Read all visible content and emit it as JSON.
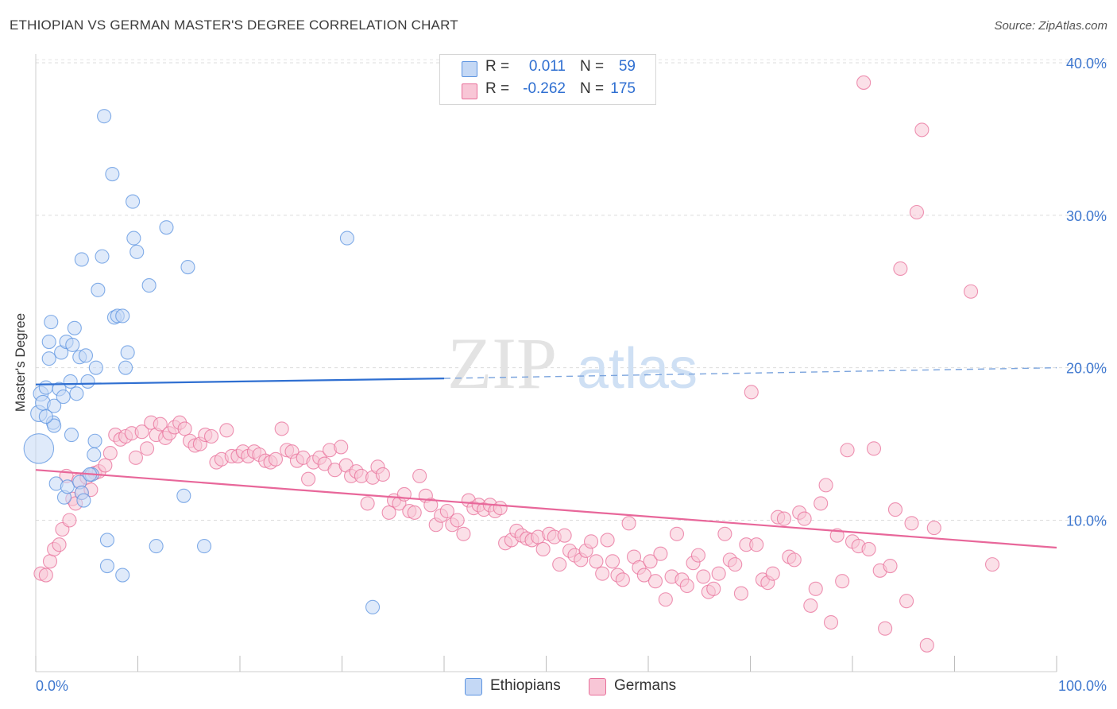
{
  "title": "ETHIOPIAN VS GERMAN MASTER'S DEGREE CORRELATION CHART",
  "source": "Source: ZipAtlas.com",
  "watermark": {
    "zip": "ZIP",
    "atlas": "atlas"
  },
  "legend": {
    "rows": [
      {
        "r_label": "R =",
        "r_value": "0.011",
        "n_label": "N =",
        "n_value": "59",
        "color": "#5b93e0",
        "fill": "#c4d8f5"
      },
      {
        "r_label": "R =",
        "r_value": "-0.262",
        "n_label": "N =",
        "n_value": "175",
        "color": "#e86f9a",
        "fill": "#f8c6d6"
      }
    ]
  },
  "bottom_legend": [
    {
      "label": "Ethiopians",
      "color": "#5b93e0",
      "fill": "#c4d8f5"
    },
    {
      "label": "Germans",
      "color": "#e86f9a",
      "fill": "#f8c6d6"
    }
  ],
  "chart_data": {
    "type": "scatter",
    "title": "ETHIOPIAN VS GERMAN MASTER'S DEGREE CORRELATION CHART",
    "xlabel": "",
    "ylabel": "Master's Degree",
    "xlim": [
      0,
      100
    ],
    "ylim": [
      0,
      42
    ],
    "x_tick_labels": [
      "0.0%",
      "100.0%"
    ],
    "y_ticks": [
      10,
      20,
      30,
      40
    ],
    "y_tick_labels": [
      "10.0%",
      "20.0%",
      "30.0%",
      "40.0%"
    ],
    "grid": true,
    "legend_position": "top-center",
    "series": [
      {
        "name": "Ethiopians",
        "color": "#5b93e0",
        "fill": "#c4d8f5",
        "trend": {
          "x": [
            0,
            40,
            100
          ],
          "y": [
            18.9,
            19.3,
            20.0
          ],
          "solid_until": 40
        },
        "points": [
          [
            0.3,
            14.7,
            22
          ],
          [
            0.3,
            17.0,
            12
          ],
          [
            0.5,
            18.3,
            11
          ],
          [
            0.7,
            17.7,
            11
          ],
          [
            1.0,
            18.7,
            10
          ],
          [
            1.3,
            21.7,
            10
          ],
          [
            1.3,
            20.6,
            10
          ],
          [
            1.5,
            23.0,
            10
          ],
          [
            1.7,
            16.4,
            10
          ],
          [
            1.8,
            17.5,
            10
          ],
          [
            1.8,
            16.2,
            10
          ],
          [
            2.0,
            12.4,
            10
          ],
          [
            2.3,
            18.6,
            10
          ],
          [
            2.5,
            21.0,
            10
          ],
          [
            2.7,
            18.1,
            10
          ],
          [
            2.8,
            11.5,
            10
          ],
          [
            3.0,
            21.7,
            10
          ],
          [
            3.1,
            12.2,
            10
          ],
          [
            3.4,
            19.1,
            10
          ],
          [
            3.5,
            15.6,
            10
          ],
          [
            3.6,
            21.5,
            10
          ],
          [
            3.8,
            22.6,
            10
          ],
          [
            4.0,
            18.3,
            10
          ],
          [
            4.3,
            20.7,
            10
          ],
          [
            4.3,
            12.5,
            10
          ],
          [
            4.5,
            11.8,
            10
          ],
          [
            4.5,
            27.1,
            10
          ],
          [
            4.7,
            11.3,
            10
          ],
          [
            4.9,
            20.8,
            10
          ],
          [
            5.1,
            19.1,
            10
          ],
          [
            5.5,
            13.0,
            10
          ],
          [
            5.7,
            14.3,
            10
          ],
          [
            5.8,
            15.2,
            10
          ],
          [
            5.9,
            20.0,
            10
          ],
          [
            6.1,
            25.1,
            10
          ],
          [
            6.5,
            27.3,
            10
          ],
          [
            6.7,
            36.5,
            10
          ],
          [
            7.0,
            8.7,
            10
          ],
          [
            7.0,
            7.0,
            10
          ],
          [
            7.5,
            32.7,
            10
          ],
          [
            7.7,
            23.3,
            10
          ],
          [
            8.0,
            23.4,
            10
          ],
          [
            8.5,
            23.4,
            10
          ],
          [
            8.5,
            6.4,
            10
          ],
          [
            8.8,
            20.0,
            10
          ],
          [
            9.0,
            21.0,
            10
          ],
          [
            9.5,
            30.9,
            10
          ],
          [
            9.6,
            28.5,
            10
          ],
          [
            9.9,
            27.6,
            10
          ],
          [
            11.1,
            25.4,
            10
          ],
          [
            11.8,
            8.3,
            10
          ],
          [
            12.8,
            29.2,
            10
          ],
          [
            14.5,
            11.6,
            10
          ],
          [
            14.9,
            26.6,
            10
          ],
          [
            16.5,
            8.3,
            10
          ],
          [
            30.5,
            28.5,
            10
          ],
          [
            33.0,
            4.3,
            10
          ],
          [
            5.3,
            13.0,
            10
          ],
          [
            1.0,
            16.8,
            10
          ]
        ]
      },
      {
        "name": "Germans",
        "color": "#e86f9a",
        "fill": "#f8c6d6",
        "trend": {
          "x": [
            0,
            100
          ],
          "y": [
            13.3,
            8.2
          ]
        },
        "points": [
          [
            0.5,
            6.5,
            10
          ],
          [
            1.0,
            6.4,
            10
          ],
          [
            1.4,
            7.3,
            10
          ],
          [
            1.8,
            8.1,
            10
          ],
          [
            2.3,
            8.4,
            10
          ],
          [
            2.6,
            9.4,
            10
          ],
          [
            3.0,
            12.9,
            10
          ],
          [
            3.3,
            10.0,
            10
          ],
          [
            3.6,
            11.4,
            10
          ],
          [
            3.9,
            11.1,
            10
          ],
          [
            4.2,
            12.6,
            10
          ],
          [
            4.5,
            11.8,
            10
          ],
          [
            5.0,
            12.8,
            10
          ],
          [
            5.4,
            12.0,
            10
          ],
          [
            5.8,
            13.1,
            10
          ],
          [
            6.2,
            13.2,
            10
          ],
          [
            6.8,
            13.6,
            10
          ],
          [
            7.3,
            14.4,
            10
          ],
          [
            7.8,
            15.6,
            10
          ],
          [
            8.3,
            15.3,
            10
          ],
          [
            8.8,
            15.5,
            10
          ],
          [
            9.4,
            15.7,
            10
          ],
          [
            9.8,
            14.1,
            10
          ],
          [
            10.4,
            15.8,
            10
          ],
          [
            10.9,
            14.7,
            10
          ],
          [
            11.3,
            16.4,
            10
          ],
          [
            11.8,
            15.6,
            10
          ],
          [
            12.2,
            16.3,
            10
          ],
          [
            12.7,
            15.4,
            10
          ],
          [
            13.1,
            15.7,
            10
          ],
          [
            13.6,
            16.1,
            10
          ],
          [
            14.1,
            16.4,
            10
          ],
          [
            14.6,
            16.0,
            10
          ],
          [
            15.1,
            15.2,
            10
          ],
          [
            15.6,
            14.9,
            10
          ],
          [
            16.1,
            15.0,
            10
          ],
          [
            16.6,
            15.6,
            10
          ],
          [
            17.2,
            15.5,
            10
          ],
          [
            17.7,
            13.8,
            10
          ],
          [
            18.2,
            14.0,
            10
          ],
          [
            18.7,
            15.9,
            10
          ],
          [
            19.2,
            14.2,
            10
          ],
          [
            19.8,
            14.2,
            10
          ],
          [
            20.3,
            14.5,
            10
          ],
          [
            20.8,
            14.2,
            10
          ],
          [
            21.4,
            14.5,
            10
          ],
          [
            21.9,
            14.3,
            10
          ],
          [
            22.5,
            13.9,
            10
          ],
          [
            23.0,
            13.8,
            10
          ],
          [
            23.5,
            14.0,
            10
          ],
          [
            24.1,
            16.0,
            10
          ],
          [
            24.6,
            14.6,
            10
          ],
          [
            25.1,
            14.5,
            10
          ],
          [
            25.6,
            13.9,
            10
          ],
          [
            26.2,
            14.1,
            10
          ],
          [
            26.7,
            12.7,
            10
          ],
          [
            27.2,
            13.8,
            10
          ],
          [
            27.8,
            14.1,
            10
          ],
          [
            28.3,
            13.7,
            10
          ],
          [
            28.8,
            14.6,
            10
          ],
          [
            29.3,
            13.3,
            10
          ],
          [
            29.9,
            14.8,
            10
          ],
          [
            30.4,
            13.6,
            10
          ],
          [
            30.9,
            12.9,
            10
          ],
          [
            31.4,
            13.2,
            10
          ],
          [
            31.9,
            12.9,
            10
          ],
          [
            32.5,
            11.1,
            10
          ],
          [
            33.0,
            12.8,
            10
          ],
          [
            33.5,
            13.5,
            10
          ],
          [
            34.0,
            13.0,
            10
          ],
          [
            34.6,
            10.5,
            10
          ],
          [
            35.1,
            11.3,
            10
          ],
          [
            35.6,
            11.1,
            10
          ],
          [
            36.1,
            11.7,
            10
          ],
          [
            36.6,
            10.6,
            10
          ],
          [
            37.1,
            10.5,
            10
          ],
          [
            37.6,
            12.9,
            10
          ],
          [
            38.2,
            11.6,
            10
          ],
          [
            38.7,
            11.0,
            10
          ],
          [
            39.2,
            9.7,
            10
          ],
          [
            39.7,
            10.3,
            10
          ],
          [
            40.3,
            10.6,
            10
          ],
          [
            40.8,
            9.7,
            10
          ],
          [
            41.3,
            10.0,
            10
          ],
          [
            41.9,
            9.1,
            10
          ],
          [
            42.4,
            11.3,
            10
          ],
          [
            42.9,
            10.8,
            10
          ],
          [
            43.4,
            11.0,
            10
          ],
          [
            43.9,
            10.7,
            10
          ],
          [
            44.5,
            11.0,
            10
          ],
          [
            45.0,
            10.6,
            10
          ],
          [
            45.5,
            10.8,
            10
          ],
          [
            46.0,
            8.5,
            10
          ],
          [
            46.6,
            8.7,
            10
          ],
          [
            47.1,
            9.3,
            10
          ],
          [
            47.6,
            9.0,
            10
          ],
          [
            48.1,
            8.8,
            10
          ],
          [
            48.6,
            8.7,
            10
          ],
          [
            49.2,
            8.9,
            10
          ],
          [
            49.7,
            8.1,
            10
          ],
          [
            50.3,
            9.1,
            10
          ],
          [
            50.8,
            8.9,
            10
          ],
          [
            51.3,
            7.1,
            10
          ],
          [
            51.8,
            9.0,
            10
          ],
          [
            52.3,
            8.0,
            10
          ],
          [
            52.8,
            7.7,
            10
          ],
          [
            53.4,
            7.4,
            10
          ],
          [
            53.9,
            8.0,
            10
          ],
          [
            54.4,
            8.6,
            10
          ],
          [
            54.9,
            7.3,
            10
          ],
          [
            55.5,
            6.5,
            10
          ],
          [
            56.0,
            8.7,
            10
          ],
          [
            56.5,
            7.3,
            10
          ],
          [
            57.0,
            6.4,
            10
          ],
          [
            57.5,
            6.1,
            10
          ],
          [
            58.1,
            9.8,
            10
          ],
          [
            58.6,
            7.6,
            10
          ],
          [
            59.1,
            6.9,
            10
          ],
          [
            59.6,
            6.4,
            10
          ],
          [
            60.2,
            7.3,
            10
          ],
          [
            60.7,
            6.0,
            10
          ],
          [
            61.2,
            7.8,
            10
          ],
          [
            61.7,
            4.8,
            10
          ],
          [
            62.3,
            6.3,
            10
          ],
          [
            62.8,
            9.1,
            10
          ],
          [
            63.3,
            6.1,
            10
          ],
          [
            63.8,
            5.7,
            10
          ],
          [
            64.4,
            7.2,
            10
          ],
          [
            64.9,
            7.7,
            10
          ],
          [
            65.4,
            6.3,
            10
          ],
          [
            65.9,
            5.3,
            10
          ],
          [
            66.4,
            5.5,
            10
          ],
          [
            66.9,
            6.5,
            10
          ],
          [
            67.5,
            9.1,
            10
          ],
          [
            68.0,
            7.4,
            10
          ],
          [
            68.5,
            7.1,
            10
          ],
          [
            69.1,
            5.2,
            10
          ],
          [
            69.6,
            8.4,
            10
          ],
          [
            70.1,
            18.4,
            10
          ],
          [
            70.6,
            8.4,
            10
          ],
          [
            71.2,
            6.1,
            10
          ],
          [
            71.7,
            5.9,
            10
          ],
          [
            72.2,
            6.5,
            10
          ],
          [
            72.7,
            10.2,
            10
          ],
          [
            73.3,
            10.1,
            10
          ],
          [
            73.8,
            7.6,
            10
          ],
          [
            74.3,
            7.4,
            10
          ],
          [
            74.8,
            10.5,
            10
          ],
          [
            75.3,
            10.1,
            10
          ],
          [
            75.9,
            4.4,
            10
          ],
          [
            76.4,
            5.5,
            10
          ],
          [
            76.9,
            11.1,
            10
          ],
          [
            77.4,
            12.3,
            10
          ],
          [
            77.9,
            3.3,
            10
          ],
          [
            78.5,
            9.0,
            10
          ],
          [
            79.0,
            6.0,
            10
          ],
          [
            79.5,
            14.6,
            10
          ],
          [
            80.0,
            8.6,
            10
          ],
          [
            80.6,
            8.3,
            10
          ],
          [
            81.1,
            38.7,
            10
          ],
          [
            81.6,
            8.1,
            10
          ],
          [
            82.1,
            14.7,
            10
          ],
          [
            82.7,
            6.7,
            10
          ],
          [
            83.2,
            2.9,
            10
          ],
          [
            83.7,
            7.0,
            10
          ],
          [
            84.2,
            10.7,
            10
          ],
          [
            84.7,
            26.5,
            10
          ],
          [
            85.3,
            4.7,
            10
          ],
          [
            85.8,
            9.8,
            10
          ],
          [
            86.3,
            30.2,
            10
          ],
          [
            86.8,
            35.6,
            10
          ],
          [
            87.3,
            1.8,
            10
          ],
          [
            88.0,
            9.5,
            10
          ],
          [
            91.6,
            25.0,
            10
          ],
          [
            93.7,
            7.1,
            10
          ]
        ]
      }
    ]
  }
}
